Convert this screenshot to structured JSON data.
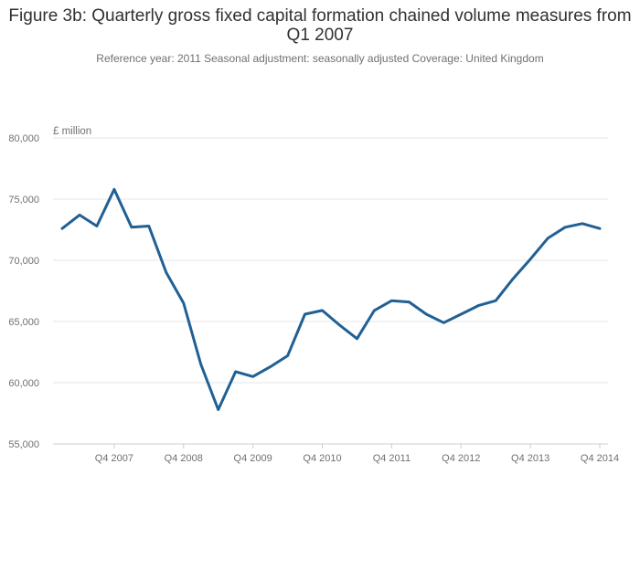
{
  "title": "Figure 3b: Quarterly gross fixed capital formation chained volume measures from Q1 2007",
  "subtitle": "Reference year: 2011 Seasonal adjustment: seasonally adjusted Coverage: United Kingdom",
  "unit_label": "£ million",
  "colors": {
    "line": "#206095",
    "grid": "#e6e6e6",
    "axis": "#cccccc",
    "text": "#707071"
  },
  "chart_data": {
    "type": "line",
    "title": "Figure 3b: Quarterly gross fixed capital formation chained volume measures from Q1 2007",
    "subtitle": "Reference year: 2011 Seasonal adjustment: seasonally adjusted Coverage: United Kingdom",
    "ylabel": "£ million",
    "xlabel": "",
    "ylim": [
      55000,
      80000
    ],
    "yticks": [
      55000,
      60000,
      65000,
      70000,
      75000,
      80000
    ],
    "ytick_labels": [
      "55,000",
      "60,000",
      "65,000",
      "70,000",
      "75,000",
      "80,000"
    ],
    "xtick_labels": [
      "Q4 2007",
      "Q4 2008",
      "Q4 2009",
      "Q4 2010",
      "Q4 2011",
      "Q4 2012",
      "Q4 2013",
      "Q4 2014"
    ],
    "xtick_indices": [
      3,
      7,
      11,
      15,
      19,
      23,
      27,
      31
    ],
    "grid": true,
    "x": [
      "Q1 2007",
      "Q2 2007",
      "Q3 2007",
      "Q4 2007",
      "Q1 2008",
      "Q2 2008",
      "Q3 2008",
      "Q4 2008",
      "Q1 2009",
      "Q2 2009",
      "Q3 2009",
      "Q4 2009",
      "Q1 2010",
      "Q2 2010",
      "Q3 2010",
      "Q4 2010",
      "Q1 2011",
      "Q2 2011",
      "Q3 2011",
      "Q4 2011",
      "Q1 2012",
      "Q2 2012",
      "Q3 2012",
      "Q4 2012",
      "Q1 2013",
      "Q2 2013",
      "Q3 2013",
      "Q4 2013",
      "Q1 2014",
      "Q2 2014",
      "Q3 2014",
      "Q4 2014"
    ],
    "series": [
      {
        "values": [
          72600,
          73700,
          72800,
          75800,
          72700,
          72800,
          69000,
          66500,
          61500,
          57800,
          60900,
          60500,
          61300,
          62200,
          65600,
          65900,
          64700,
          63600,
          65900,
          66700,
          66600,
          65600,
          64900,
          65600,
          66300,
          66700,
          68500,
          70100,
          71800,
          72700,
          73000,
          72600
        ]
      }
    ]
  }
}
